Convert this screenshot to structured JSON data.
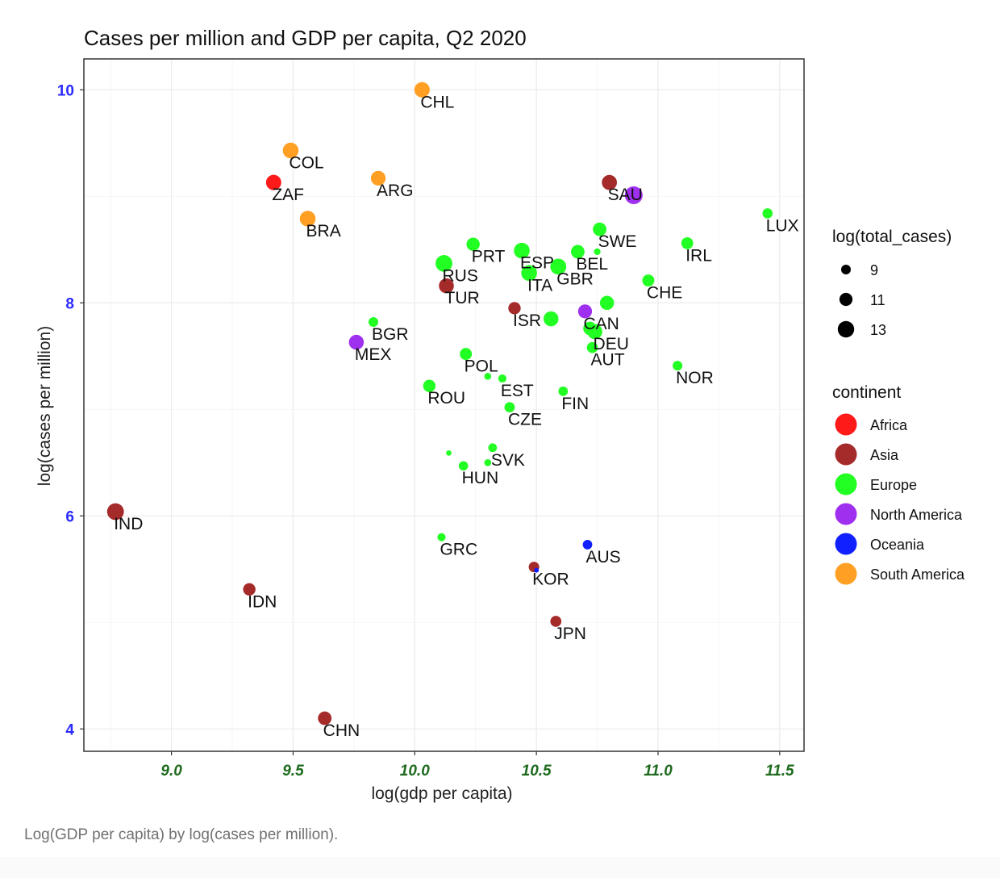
{
  "caption": "Log(GDP per capita) by log(cases per million).",
  "chart_data": {
    "type": "scatter",
    "title": "Cases per million and GDP per capita, Q2 2020",
    "xlabel": "log(gdp per capita)",
    "ylabel": "log(cases per million)",
    "xlim": [
      8.64,
      11.6
    ],
    "ylim": [
      3.79,
      10.29
    ],
    "x_ticks": [
      "9.0",
      "9.5",
      "10.0",
      "10.5",
      "11.0",
      "11.5"
    ],
    "x_tick_values": [
      9.0,
      9.5,
      10.0,
      10.5,
      11.0,
      11.5
    ],
    "y_ticks": [
      "4",
      "6",
      "8",
      "10"
    ],
    "y_tick_values": [
      4,
      6,
      8,
      10
    ],
    "grid": true,
    "legend_position": "right",
    "size_legend": {
      "title": "log(total_cases)",
      "entries": [
        {
          "label": "9",
          "value": 9
        },
        {
          "label": "11",
          "value": 11
        },
        {
          "label": "13",
          "value": 13
        }
      ]
    },
    "color_legend": {
      "title": "continent",
      "entries": [
        {
          "label": "Africa",
          "color": "#ff1a1a"
        },
        {
          "label": "Asia",
          "color": "#a52a2a"
        },
        {
          "label": "Europe",
          "color": "#22ff22"
        },
        {
          "label": "North America",
          "color": "#a030f0"
        },
        {
          "label": "Oceania",
          "color": "#1020ff"
        },
        {
          "label": "South America",
          "color": "#ffa024"
        }
      ]
    },
    "points": [
      {
        "label": "CHL",
        "x": 10.03,
        "y": 10.0,
        "size": 12.4,
        "continent": "South America"
      },
      {
        "label": "COL",
        "x": 9.49,
        "y": 9.43,
        "size": 12.6,
        "continent": "South America"
      },
      {
        "label": "ZAF",
        "x": 9.42,
        "y": 9.13,
        "size": 12.3,
        "continent": "Africa"
      },
      {
        "label": "ARG",
        "x": 9.85,
        "y": 9.17,
        "size": 12.0,
        "continent": "South America"
      },
      {
        "label": "BRA",
        "x": 9.56,
        "y": 8.79,
        "size": 12.6,
        "continent": "South America"
      },
      {
        "label": "SAU",
        "x": 10.8,
        "y": 9.13,
        "size": 12.2,
        "continent": "Asia"
      },
      {
        "label": "",
        "x": 10.9,
        "y": 9.01,
        "size": 13.8,
        "continent": "North America"
      },
      {
        "label": "LUX",
        "x": 11.45,
        "y": 8.84,
        "size": 9.3,
        "continent": "Europe"
      },
      {
        "label": "SWE",
        "x": 10.76,
        "y": 8.69,
        "size": 11.3,
        "continent": "Europe"
      },
      {
        "label": "PRT",
        "x": 10.24,
        "y": 8.55,
        "size": 11.1,
        "continent": "Europe"
      },
      {
        "label": "ESP",
        "x": 10.44,
        "y": 8.49,
        "size": 12.6,
        "continent": "Europe"
      },
      {
        "label": "BEL",
        "x": 10.67,
        "y": 8.48,
        "size": 11.3,
        "continent": "Europe"
      },
      {
        "label": "",
        "x": 10.75,
        "y": 8.48,
        "size": 7.2,
        "continent": "Europe"
      },
      {
        "label": "IRL",
        "x": 11.12,
        "y": 8.56,
        "size": 10.3,
        "continent": "Europe"
      },
      {
        "label": "RUS",
        "x": 10.12,
        "y": 8.37,
        "size": 13.2,
        "continent": "Europe"
      },
      {
        "label": "GBR",
        "x": 10.59,
        "y": 8.34,
        "size": 12.7,
        "continent": "Europe"
      },
      {
        "label": "ITA",
        "x": 10.47,
        "y": 8.28,
        "size": 12.6,
        "continent": "Europe"
      },
      {
        "label": "CHE",
        "x": 10.96,
        "y": 8.21,
        "size": 10.4,
        "continent": "Europe"
      },
      {
        "label": "TUR",
        "x": 10.13,
        "y": 8.16,
        "size": 12.1,
        "continent": "Asia"
      },
      {
        "label": "",
        "x": 10.79,
        "y": 8.0,
        "size": 11.6,
        "continent": "Europe"
      },
      {
        "label": "ISR",
        "x": 10.41,
        "y": 7.95,
        "size": 10.6,
        "continent": "Asia"
      },
      {
        "label": "CAN",
        "x": 10.7,
        "y": 7.92,
        "size": 11.5,
        "continent": "North America"
      },
      {
        "label": "",
        "x": 10.56,
        "y": 7.85,
        "size": 12.1,
        "continent": "Europe"
      },
      {
        "label": "BGR",
        "x": 9.83,
        "y": 7.82,
        "size": 9.0,
        "continent": "Europe"
      },
      {
        "label": "",
        "x": 10.72,
        "y": 7.76,
        "size": 11.2,
        "continent": "Europe"
      },
      {
        "label": "DEU",
        "x": 10.74,
        "y": 7.73,
        "size": 12.2,
        "continent": "Europe"
      },
      {
        "label": "MEX",
        "x": 9.76,
        "y": 7.63,
        "size": 12.1,
        "continent": "North America"
      },
      {
        "label": "AUT",
        "x": 10.73,
        "y": 7.58,
        "size": 9.8,
        "continent": "Europe"
      },
      {
        "label": "POL",
        "x": 10.21,
        "y": 7.52,
        "size": 10.4,
        "continent": "Europe"
      },
      {
        "label": "NOR",
        "x": 11.08,
        "y": 7.41,
        "size": 9.0,
        "continent": "Europe"
      },
      {
        "label": "",
        "x": 10.3,
        "y": 7.31,
        "size": 7.4,
        "continent": "Europe"
      },
      {
        "label": "EST",
        "x": 10.36,
        "y": 7.29,
        "size": 8.1,
        "continent": "Europe"
      },
      {
        "label": "ROU",
        "x": 10.06,
        "y": 7.22,
        "size": 10.6,
        "continent": "Europe"
      },
      {
        "label": "FIN",
        "x": 10.61,
        "y": 7.17,
        "size": 8.9,
        "continent": "Europe"
      },
      {
        "label": "CZE",
        "x": 10.39,
        "y": 7.02,
        "size": 9.4,
        "continent": "Europe"
      },
      {
        "label": "SVK",
        "x": 10.32,
        "y": 6.64,
        "size": 8.4,
        "continent": "Europe"
      },
      {
        "label": "",
        "x": 10.14,
        "y": 6.59,
        "size": 6.5,
        "continent": "Europe"
      },
      {
        "label": "",
        "x": 10.3,
        "y": 6.5,
        "size": 7.4,
        "continent": "Europe"
      },
      {
        "label": "HUN",
        "x": 10.2,
        "y": 6.47,
        "size": 8.8,
        "continent": "Europe"
      },
      {
        "label": "IND",
        "x": 8.77,
        "y": 6.04,
        "size": 13.2,
        "continent": "Asia"
      },
      {
        "label": "GRC",
        "x": 10.11,
        "y": 5.8,
        "size": 8.1,
        "continent": "Europe"
      },
      {
        "label": "AUS",
        "x": 10.71,
        "y": 5.73,
        "size": 8.9,
        "continent": "Oceania"
      },
      {
        "label": "KOR",
        "x": 10.49,
        "y": 5.52,
        "size": 9.5,
        "continent": "Asia"
      },
      {
        "label": "",
        "x": 10.5,
        "y": 5.49,
        "size": 5.5,
        "continent": "Oceania"
      },
      {
        "label": "IDN",
        "x": 9.32,
        "y": 5.31,
        "size": 10.6,
        "continent": "Asia"
      },
      {
        "label": "JPN",
        "x": 10.58,
        "y": 5.01,
        "size": 9.8,
        "continent": "Asia"
      },
      {
        "label": "CHN",
        "x": 9.63,
        "y": 4.1,
        "size": 11.3,
        "continent": "Asia"
      }
    ]
  }
}
